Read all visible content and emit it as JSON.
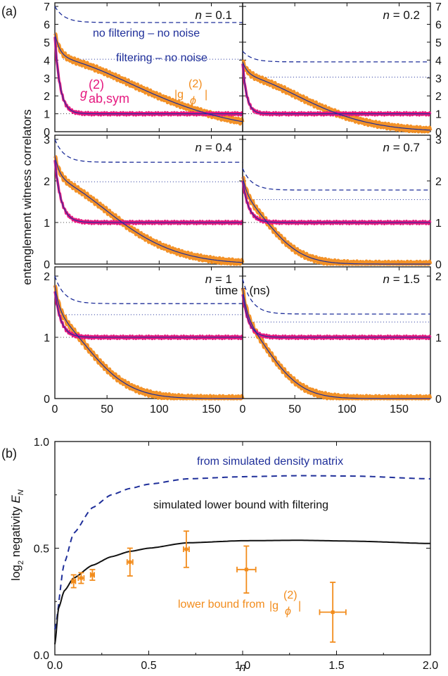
{
  "figure": {
    "panel_a_label": "(a)",
    "panel_b_label": "(b)",
    "a_ylabel": "entanglement witness correlators",
    "a_xlabel": "time τ (ns)",
    "b_ylabel": "log",
    "b_ylabel_sub": "2",
    "b_ylabel_tail": " negativity ",
    "b_ylabel_E": "E",
    "b_ylabel_Esub": "N",
    "b_xlabel": "n",
    "anno_no_filter": "no filtering – no noise",
    "anno_filter": "filtering – no noise",
    "anno_gab": "g",
    "anno_gab_sup": "(2)",
    "anno_gab_sub": "ab,sym",
    "anno_gphi": "|g",
    "anno_gphi_sup": "(2)",
    "anno_gphi_sub": "ϕ",
    "anno_gphi_close": "|",
    "b_anno_sim_density": "from simulated density matrix",
    "b_anno_lower_filter": "simulated lower bound with filtering",
    "b_anno_lower_gphi": "lower bound from",
    "colors": {
      "navy": "#1f2f9a",
      "orange": "#f28c1c",
      "pink": "#e5187f",
      "black": "#111111"
    }
  },
  "chart_data": [
    {
      "type": "line",
      "panel": "a",
      "x_ticks": [
        0,
        50,
        100,
        150
      ],
      "xlim": [
        0,
        180
      ],
      "subplots": [
        {
          "n_label": "n = 0.1",
          "ylim": [
            0,
            7.2
          ],
          "y_ticks": [
            0,
            1,
            2,
            3,
            4,
            5,
            6,
            7
          ],
          "left_ticks": true,
          "right_ticks": false,
          "dash_start": 7.0,
          "dash_end": 6.1,
          "dot": 4.05,
          "g_start": 5.5,
          "g_knee": 4.1,
          "g_tau": 120,
          "pink_start": 5.3,
          "pink_tau": 5
        },
        {
          "n_label": "n = 0.2",
          "ylim": [
            0,
            7.2
          ],
          "y_ticks": [
            0,
            1,
            2,
            3,
            4,
            5,
            6,
            7
          ],
          "left_ticks": false,
          "right_ticks": true,
          "dash_start": 4.5,
          "dash_end": 3.9,
          "dot": 3.05,
          "g_start": 3.9,
          "g_knee": 3.1,
          "g_tau": 85,
          "pink_start": 3.8,
          "pink_tau": 4
        },
        {
          "n_label": "n = 0.4",
          "ylim": [
            0,
            3.1
          ],
          "y_ticks": [
            0,
            1,
            2,
            3
          ],
          "left_ticks": true,
          "right_ticks": false,
          "dash_start": 3.0,
          "dash_end": 2.45,
          "dot": 1.98,
          "g_start": 2.6,
          "g_knee": 2.0,
          "g_tau": 80,
          "pink_start": 2.5,
          "pink_tau": 6
        },
        {
          "n_label": "n = 0.7",
          "ylim": [
            0,
            3.1
          ],
          "y_ticks": [
            0,
            1,
            2,
            3
          ],
          "left_ticks": false,
          "right_ticks": true,
          "dash_start": 2.3,
          "dash_end": 1.78,
          "dot": 1.55,
          "g_start": 2.1,
          "g_knee": 1.5,
          "g_tau": 40,
          "pink_start": 2.0,
          "pink_tau": 6
        },
        {
          "n_label": "n = 1",
          "ylim": [
            0,
            2.15
          ],
          "y_ticks": [
            0,
            1,
            2
          ],
          "left_ticks": true,
          "right_ticks": false,
          "dash_start": 2.0,
          "dash_end": 1.55,
          "dot": 1.37,
          "g_start": 1.85,
          "g_knee": 1.3,
          "g_tau": 50,
          "pink_start": 1.75,
          "pink_tau": 6
        },
        {
          "n_label": "n = 1.5",
          "ylim": [
            0,
            2.15
          ],
          "y_ticks": [
            0,
            1,
            2
          ],
          "left_ticks": false,
          "right_ticks": true,
          "dash_start": 1.95,
          "dash_end": 1.38,
          "dot": 1.25,
          "g_start": 1.8,
          "g_knee": 1.2,
          "g_tau": 40,
          "pink_start": 1.7,
          "pink_tau": 6
        }
      ]
    },
    {
      "type": "line",
      "panel": "b",
      "xlim": [
        0,
        2.0
      ],
      "ylim": [
        0,
        1.0
      ],
      "x_ticks": [
        "0.0",
        "0.5",
        "1.0",
        "1.5",
        "2.0"
      ],
      "y_ticks": [
        "0.0",
        "0.5",
        "1.0"
      ],
      "series": [
        {
          "style": "dashed",
          "color": "#1f2f9a",
          "x": [
            0.0,
            0.05,
            0.1,
            0.2,
            0.3,
            0.4,
            0.5,
            0.7,
            1.0,
            1.3,
            1.6,
            2.0
          ],
          "y": [
            0.12,
            0.43,
            0.57,
            0.69,
            0.75,
            0.78,
            0.8,
            0.825,
            0.835,
            0.84,
            0.838,
            0.825
          ]
        },
        {
          "style": "solid",
          "color": "#111111",
          "x": [
            0.0,
            0.02,
            0.05,
            0.1,
            0.2,
            0.3,
            0.4,
            0.5,
            0.7,
            1.0,
            1.3,
            1.6,
            2.0
          ],
          "y": [
            0.05,
            0.22,
            0.3,
            0.36,
            0.42,
            0.46,
            0.485,
            0.5,
            0.525,
            0.535,
            0.537,
            0.533,
            0.522
          ]
        }
      ],
      "points": [
        {
          "x": 0.1,
          "y": 0.345,
          "xerr": 0.01,
          "yerr": 0.03
        },
        {
          "x": 0.14,
          "y": 0.36,
          "xerr": 0.015,
          "yerr": 0.025
        },
        {
          "x": 0.2,
          "y": 0.375,
          "xerr": 0.01,
          "yerr": 0.025
        },
        {
          "x": 0.4,
          "y": 0.435,
          "xerr": 0.015,
          "yerr": 0.065
        },
        {
          "x": 0.7,
          "y": 0.495,
          "xerr": 0.015,
          "yerr": 0.085
        },
        {
          "x": 1.02,
          "y": 0.4,
          "xerr": 0.05,
          "yerr": 0.11
        },
        {
          "x": 1.48,
          "y": 0.2,
          "xerr": 0.07,
          "yerr": 0.14
        }
      ]
    }
  ]
}
